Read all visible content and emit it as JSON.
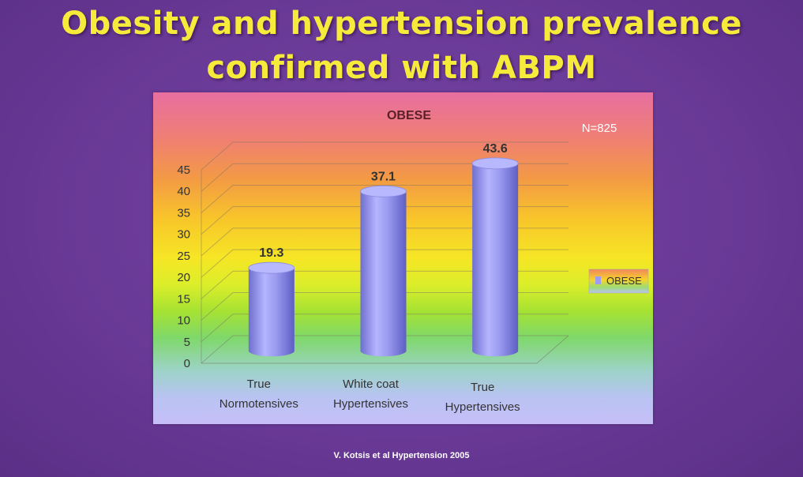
{
  "slide": {
    "title_line1": "Obesity and hypertension prevalence",
    "title_line2": "confirmed with ABPM",
    "credit": "V. Kotsis et al Hypertension 2005"
  },
  "chart_data": {
    "type": "bar",
    "title": "OBESE",
    "annotation": "N=825",
    "categories": [
      [
        "True",
        "Normotensives"
      ],
      [
        "White coat",
        "Hypertensives"
      ],
      [
        "True",
        "Hypertensives"
      ]
    ],
    "series": [
      {
        "name": "OBESE",
        "values": [
          19.3,
          37.1,
          43.6
        ]
      }
    ],
    "data_labels": [
      "19.3",
      "37.1",
      "43.6"
    ],
    "ylim": [
      0,
      45
    ],
    "yticks": [
      "0",
      "5",
      "10",
      "15",
      "20",
      "25",
      "30",
      "35",
      "40",
      "45"
    ],
    "legend": "right",
    "grid": true,
    "bar_shape": "cylinder-3d",
    "colors": {
      "bar": "#9c9cf2",
      "bar_dark": "#6c6ccc",
      "bar_top": "#b8b8ff",
      "title": "#5a1f28",
      "text": "#333333"
    }
  }
}
